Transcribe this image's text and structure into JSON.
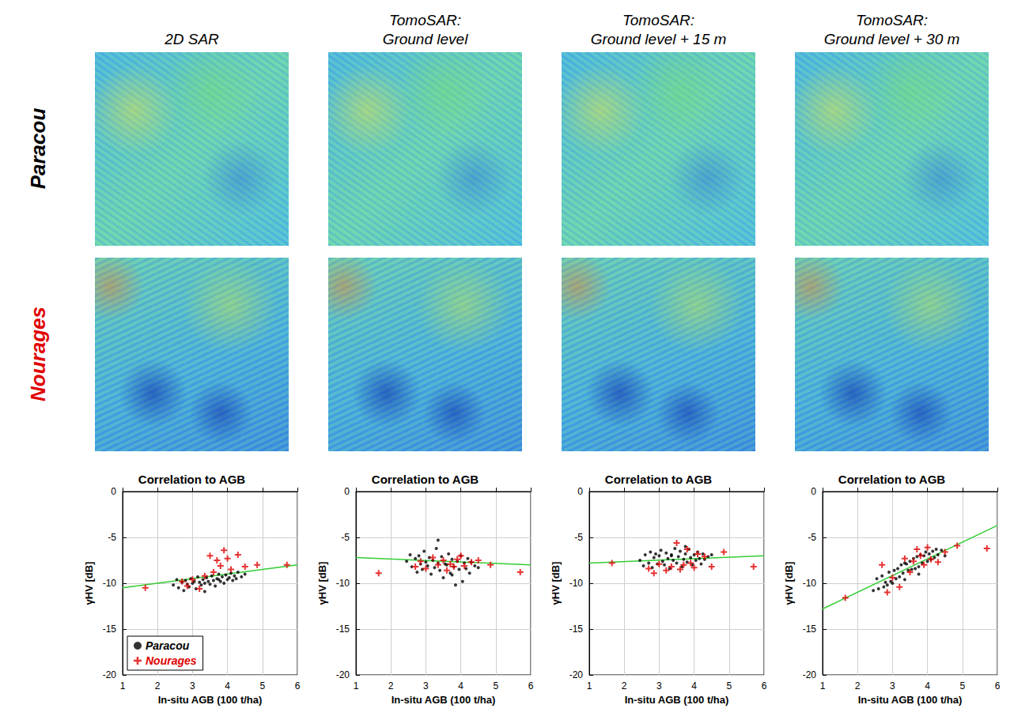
{
  "columns": [
    "2D SAR",
    "TomoSAR: Ground level",
    "TomoSAR: Ground level + 15 m",
    "TomoSAR: Ground level + 30 m"
  ],
  "rows": [
    {
      "label": "Paracou",
      "color": "#000000"
    },
    {
      "label": "Nourages",
      "color": "#e00000"
    }
  ],
  "chart_data": [
    {
      "type": "scatter",
      "title": "Correlation to AGB",
      "x_label": "In-situ AGB (100 t/ha)",
      "y_label": "γHV [dB]",
      "xlim": [
        1,
        6
      ],
      "xticks": [
        1,
        2,
        3,
        4,
        5,
        6
      ],
      "ylim": [
        -20,
        0
      ],
      "yticks": [
        -20,
        -15,
        -10,
        -5,
        0
      ],
      "grid": true,
      "legend": "lower left",
      "series": [
        {
          "name": "Paracou",
          "color": "#000000",
          "marker": "circle",
          "x": [
            2.45,
            2.55,
            2.6,
            2.7,
            2.75,
            2.8,
            2.85,
            2.9,
            2.95,
            3.0,
            3.05,
            3.1,
            3.15,
            3.2,
            3.25,
            3.3,
            3.35,
            3.4,
            3.45,
            3.5,
            3.55,
            3.6,
            3.65,
            3.7,
            3.75,
            3.8,
            3.85,
            3.9,
            3.95,
            4.0,
            4.05,
            4.1,
            4.15,
            4.2,
            4.25,
            4.3,
            4.4,
            4.5,
            3.35,
            3.75
          ],
          "values": [
            -10.2,
            -9.6,
            -10.5,
            -9.9,
            -10.8,
            -9.7,
            -10.1,
            -10.4,
            -9.5,
            -10.0,
            -9.8,
            -10.6,
            -9.3,
            -9.9,
            -10.2,
            -9.6,
            -10.9,
            -9.4,
            -9.8,
            -10.1,
            -9.2,
            -9.7,
            -10.3,
            -9.5,
            -9.0,
            -9.8,
            -9.3,
            -10.0,
            -9.1,
            -9.6,
            -9.4,
            -8.9,
            -9.7,
            -9.2,
            -9.5,
            -8.8,
            -9.3,
            -9.0,
            -10.0,
            -9.6
          ]
        },
        {
          "name": "Nourages",
          "color": "#e00000",
          "marker": "plus",
          "x": [
            1.65,
            2.7,
            2.85,
            3.0,
            3.2,
            3.35,
            3.5,
            3.6,
            3.7,
            3.8,
            3.9,
            4.0,
            4.1,
            4.3,
            4.5,
            4.85,
            5.7
          ],
          "values": [
            -10.5,
            -9.8,
            -10.3,
            -9.6,
            -10.6,
            -9.2,
            -7.0,
            -8.8,
            -7.5,
            -8.1,
            -6.4,
            -7.3,
            -8.5,
            -6.9,
            -8.2,
            -8.0,
            -8.0
          ]
        },
        {
          "type": "line",
          "color": "#33cc33",
          "line_style": "solid",
          "x": [
            1,
            6
          ],
          "values": [
            -10.5,
            -8.0
          ]
        }
      ]
    },
    {
      "type": "scatter",
      "title": "Correlation to AGB",
      "x_label": "In-situ AGB (100 t/ha)",
      "y_label": "γHV [dB]",
      "xlim": [
        1,
        6
      ],
      "xticks": [
        1,
        2,
        3,
        4,
        5,
        6
      ],
      "ylim": [
        -20,
        0
      ],
      "yticks": [
        -20,
        -15,
        -10,
        -5,
        0
      ],
      "grid": true,
      "series": [
        {
          "name": "Paracou",
          "color": "#000000",
          "marker": "circle",
          "x": [
            2.45,
            2.55,
            2.6,
            2.7,
            2.75,
            2.8,
            2.85,
            2.9,
            2.95,
            3.0,
            3.05,
            3.1,
            3.15,
            3.2,
            3.25,
            3.3,
            3.35,
            3.4,
            3.45,
            3.5,
            3.55,
            3.6,
            3.65,
            3.7,
            3.75,
            3.8,
            3.85,
            3.9,
            3.95,
            4.0,
            4.05,
            4.1,
            4.15,
            4.2,
            4.25,
            4.3,
            4.4,
            4.5,
            3.35,
            3.75
          ],
          "values": [
            -7.6,
            -6.9,
            -8.2,
            -7.3,
            -8.8,
            -7.0,
            -7.9,
            -8.5,
            -6.5,
            -7.7,
            -8.1,
            -7.2,
            -9.0,
            -7.5,
            -8.3,
            -6.2,
            -7.8,
            -8.6,
            -7.1,
            -9.4,
            -7.9,
            -8.0,
            -6.8,
            -8.9,
            -7.4,
            -8.2,
            -10.2,
            -7.6,
            -8.5,
            -7.0,
            -9.8,
            -7.8,
            -8.4,
            -7.3,
            -8.9,
            -7.7,
            -8.1,
            -8.3,
            -5.3,
            -9.1
          ]
        },
        {
          "name": "Nourages",
          "color": "#e00000",
          "marker": "plus",
          "x": [
            1.65,
            2.7,
            2.85,
            3.0,
            3.2,
            3.35,
            3.5,
            3.6,
            3.7,
            3.8,
            3.9,
            4.0,
            4.1,
            4.3,
            4.5,
            4.85,
            5.7
          ],
          "values": [
            -8.9,
            -8.2,
            -7.6,
            -8.4,
            -7.2,
            -8.0,
            -7.5,
            -8.6,
            -7.9,
            -8.2,
            -7.4,
            -7.0,
            -8.1,
            -7.7,
            -7.5,
            -8.0,
            -8.8
          ]
        },
        {
          "type": "line",
          "color": "#33cc33",
          "line_style": "solid",
          "x": [
            1,
            6
          ],
          "values": [
            -7.2,
            -8.0
          ]
        }
      ]
    },
    {
      "type": "scatter",
      "title": "Correlation to AGB",
      "x_label": "In-situ AGB (100 t/ha)",
      "y_label": "γHV [dB]",
      "xlim": [
        1,
        6
      ],
      "xticks": [
        1,
        2,
        3,
        4,
        5,
        6
      ],
      "ylim": [
        -20,
        0
      ],
      "yticks": [
        -20,
        -15,
        -10,
        -5,
        0
      ],
      "grid": true,
      "series": [
        {
          "name": "Paracou",
          "color": "#000000",
          "marker": "circle",
          "x": [
            2.45,
            2.55,
            2.6,
            2.7,
            2.75,
            2.8,
            2.85,
            2.9,
            2.95,
            3.0,
            3.05,
            3.1,
            3.15,
            3.2,
            3.25,
            3.3,
            3.35,
            3.4,
            3.45,
            3.5,
            3.55,
            3.6,
            3.65,
            3.7,
            3.75,
            3.8,
            3.85,
            3.9,
            3.95,
            4.0,
            4.05,
            4.1,
            4.15,
            4.2,
            4.25,
            4.3,
            4.4,
            4.5,
            3.35,
            3.75
          ],
          "values": [
            -7.5,
            -8.1,
            -6.9,
            -7.8,
            -6.6,
            -8.3,
            -7.2,
            -6.8,
            -7.9,
            -7.0,
            -6.4,
            -7.6,
            -8.0,
            -6.7,
            -7.3,
            -8.4,
            -6.9,
            -7.5,
            -6.2,
            -7.8,
            -7.1,
            -6.5,
            -8.2,
            -7.4,
            -6.8,
            -7.7,
            -6.3,
            -7.2,
            -8.0,
            -6.9,
            -7.5,
            -6.6,
            -7.3,
            -7.9,
            -6.8,
            -7.4,
            -7.1,
            -6.9,
            -7.0,
            -6.0
          ]
        },
        {
          "name": "Nourages",
          "color": "#e00000",
          "marker": "plus",
          "x": [
            1.65,
            2.7,
            2.85,
            3.0,
            3.2,
            3.35,
            3.5,
            3.6,
            3.7,
            3.8,
            3.9,
            4.0,
            4.1,
            4.3,
            4.5,
            4.85,
            5.7
          ],
          "values": [
            -7.8,
            -8.4,
            -8.9,
            -7.9,
            -8.6,
            -8.2,
            -5.6,
            -8.5,
            -8.0,
            -6.3,
            -7.8,
            -8.3,
            -6.8,
            -7.1,
            -8.2,
            -6.6,
            -8.2
          ]
        },
        {
          "type": "line",
          "color": "#33cc33",
          "line_style": "solid",
          "x": [
            1,
            6
          ],
          "values": [
            -7.8,
            -7.0
          ]
        }
      ]
    },
    {
      "type": "scatter",
      "title": "Correlation to AGB",
      "x_label": "In-situ AGB (100 t/ha)",
      "y_label": "γHV [dB]",
      "xlim": [
        1,
        6
      ],
      "xticks": [
        1,
        2,
        3,
        4,
        5,
        6
      ],
      "ylim": [
        -20,
        0
      ],
      "yticks": [
        -20,
        -15,
        -10,
        -5,
        0
      ],
      "grid": true,
      "series": [
        {
          "name": "Paracou",
          "color": "#000000",
          "marker": "circle",
          "x": [
            2.45,
            2.55,
            2.6,
            2.7,
            2.75,
            2.8,
            2.85,
            2.9,
            2.95,
            3.0,
            3.05,
            3.1,
            3.15,
            3.2,
            3.25,
            3.3,
            3.35,
            3.4,
            3.45,
            3.5,
            3.55,
            3.6,
            3.65,
            3.7,
            3.75,
            3.8,
            3.85,
            3.9,
            3.95,
            4.0,
            4.05,
            4.1,
            4.15,
            4.2,
            4.25,
            4.3,
            4.4,
            4.5,
            3.35,
            3.75
          ],
          "values": [
            -10.8,
            -9.5,
            -10.6,
            -9.2,
            -10.4,
            -9.9,
            -10.2,
            -8.8,
            -9.8,
            -10.0,
            -8.6,
            -9.5,
            -8.4,
            -9.3,
            -8.0,
            -8.9,
            -9.6,
            -7.9,
            -8.6,
            -7.6,
            -8.5,
            -7.3,
            -8.4,
            -7.1,
            -8.2,
            -6.9,
            -7.8,
            -7.0,
            -6.6,
            -7.6,
            -6.8,
            -7.4,
            -6.5,
            -7.2,
            -6.3,
            -6.9,
            -6.4,
            -7.0,
            -7.8,
            -9.0
          ]
        },
        {
          "name": "Nourages",
          "color": "#e00000",
          "marker": "plus",
          "x": [
            1.65,
            2.7,
            2.85,
            3.0,
            3.2,
            3.35,
            3.5,
            3.6,
            3.7,
            3.8,
            3.9,
            4.0,
            4.1,
            4.3,
            4.5,
            4.85,
            5.7
          ],
          "values": [
            -11.6,
            -8.0,
            -11.0,
            -9.4,
            -10.4,
            -7.3,
            -8.8,
            -7.6,
            -6.3,
            -7.0,
            -8.0,
            -6.1,
            -7.4,
            -7.7,
            -6.6,
            -5.9,
            -6.2
          ]
        },
        {
          "type": "line",
          "color": "#33cc33",
          "line_style": "solid",
          "x": [
            1,
            6
          ],
          "values": [
            -12.8,
            -3.7
          ]
        }
      ]
    }
  ]
}
